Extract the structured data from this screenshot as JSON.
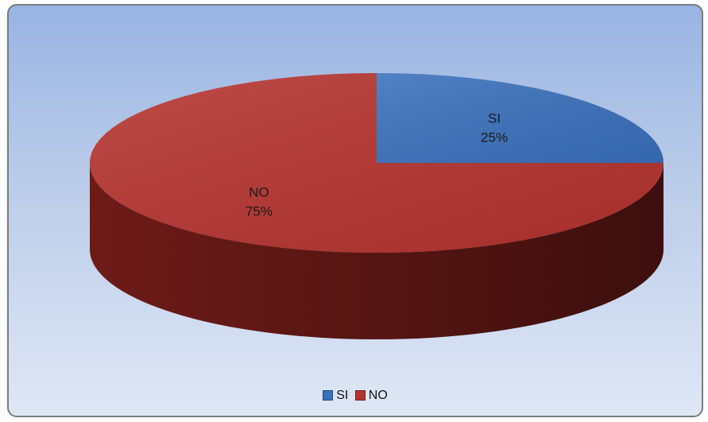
{
  "chart_data": {
    "type": "pie",
    "three_d": true,
    "categories": [
      "SI",
      "NO"
    ],
    "values": [
      25,
      75
    ],
    "data_labels": [
      "25%",
      "75%"
    ],
    "colors": [
      "#3a70bc",
      "#b5332f"
    ],
    "side_colors": [
      "#2a538f",
      "#6e1b18"
    ],
    "legend": {
      "position": "bottom",
      "entries": [
        "SI",
        "NO"
      ]
    }
  }
}
